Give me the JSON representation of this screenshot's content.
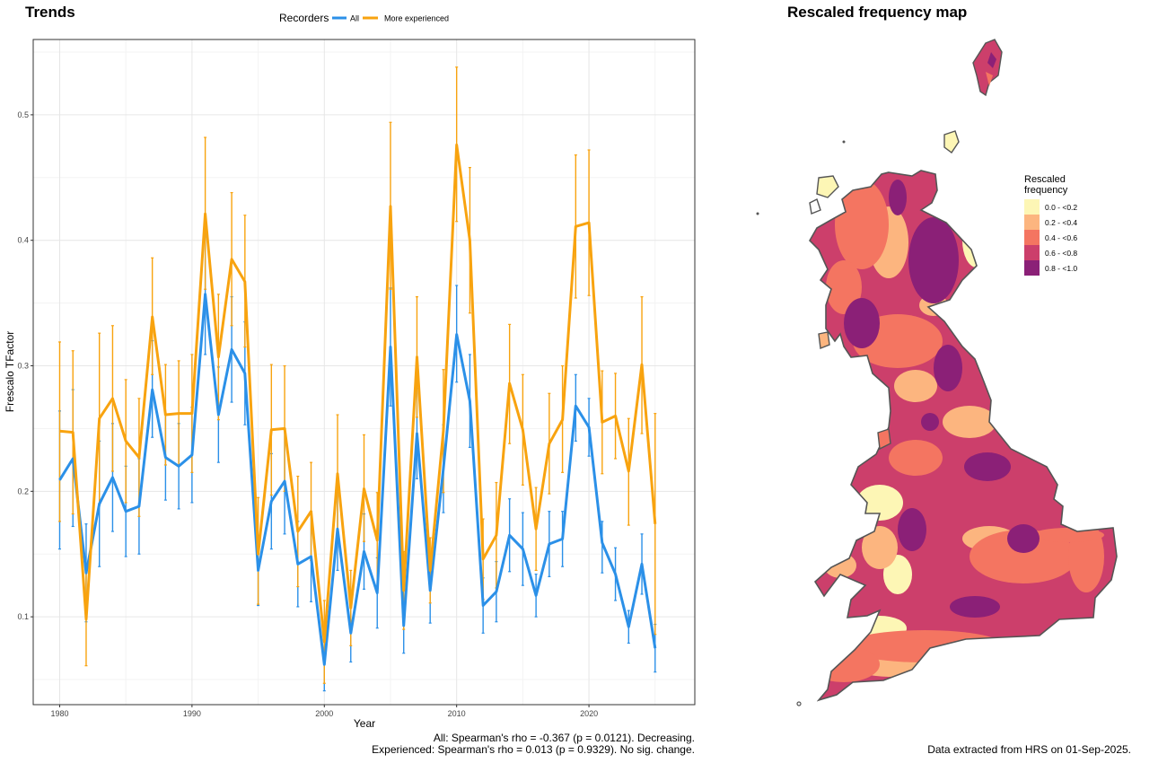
{
  "trends_panel": {
    "title": "Trends",
    "stats": [
      "All: Spearman's rho = -0.367 (p = 0.0121). Decreasing.",
      "Experienced: Spearman's rho = 0.013 (p = 0.9329). No sig. change."
    ]
  },
  "map_panel": {
    "title": "Rescaled frequency map",
    "legend_title": [
      "Rescaled",
      "frequency"
    ],
    "legend_entries": [
      {
        "label": "0.0 - <0.2",
        "color": "#fdf6b5"
      },
      {
        "label": "0.2 - <0.4",
        "color": "#fcb57f"
      },
      {
        "label": "0.4 - <0.6",
        "color": "#f47561"
      },
      {
        "label": "0.6 - <0.8",
        "color": "#cc3f6b"
      },
      {
        "label": "0.8 - <1.0",
        "color": "#8b2077"
      }
    ],
    "footer": "Data extracted from HRS on 01-Sep-2025."
  },
  "chart_data": {
    "type": "line",
    "xlabel": "Year",
    "ylabel": "Frescalo TFactor",
    "xlim": [
      1978,
      2028
    ],
    "ylim": [
      0.03,
      0.56
    ],
    "x_ticks": [
      1980,
      1990,
      2000,
      2010,
      2020
    ],
    "y_ticks": [
      0.1,
      0.2,
      0.3,
      0.4,
      0.5
    ],
    "grid": true,
    "legend_title": "Recorders",
    "legend_position": "top",
    "x": [
      1980,
      1981,
      1982,
      1983,
      1984,
      1985,
      1986,
      1987,
      1988,
      1989,
      1990,
      1991,
      1992,
      1993,
      1994,
      1995,
      1996,
      1997,
      1998,
      1999,
      2000,
      2001,
      2002,
      2003,
      2004,
      2005,
      2006,
      2007,
      2008,
      2009,
      2010,
      2011,
      2012,
      2013,
      2014,
      2015,
      2016,
      2017,
      2018,
      2019,
      2020,
      2021,
      2022,
      2023,
      2024,
      2025
    ],
    "series": [
      {
        "name": "All",
        "color": "#2b90e8",
        "values": [
          0.209,
          0.226,
          0.135,
          0.19,
          0.211,
          0.184,
          0.188,
          0.281,
          0.227,
          0.22,
          0.229,
          0.357,
          0.261,
          0.313,
          0.294,
          0.137,
          0.192,
          0.208,
          0.142,
          0.148,
          0.062,
          0.17,
          0.087,
          0.152,
          0.119,
          0.315,
          0.093,
          0.246,
          0.121,
          0.218,
          0.325,
          0.272,
          0.109,
          0.12,
          0.165,
          0.154,
          0.117,
          0.158,
          0.162,
          0.268,
          0.251,
          0.159,
          0.134,
          0.092,
          0.142,
          0.075
        ],
        "lower": [
          0.154,
          0.172,
          0.096,
          0.14,
          0.168,
          0.148,
          0.15,
          0.243,
          0.193,
          0.186,
          0.191,
          0.309,
          0.223,
          0.271,
          0.253,
          0.109,
          0.154,
          0.166,
          0.108,
          0.112,
          0.041,
          0.137,
          0.064,
          0.122,
          0.091,
          0.268,
          0.071,
          0.21,
          0.095,
          0.183,
          0.287,
          0.235,
          0.087,
          0.096,
          0.136,
          0.125,
          0.1,
          0.132,
          0.14,
          0.24,
          0.228,
          0.135,
          0.113,
          0.079,
          0.118,
          0.056
        ],
        "upper": [
          0.264,
          0.281,
          0.174,
          0.24,
          0.254,
          0.22,
          0.226,
          0.32,
          0.261,
          0.254,
          0.267,
          0.405,
          0.299,
          0.355,
          0.335,
          0.165,
          0.23,
          0.25,
          0.176,
          0.184,
          0.083,
          0.203,
          0.11,
          0.182,
          0.147,
          0.362,
          0.115,
          0.282,
          0.147,
          0.253,
          0.364,
          0.309,
          0.131,
          0.144,
          0.194,
          0.183,
          0.134,
          0.184,
          0.184,
          0.293,
          0.274,
          0.176,
          0.155,
          0.105,
          0.166,
          0.094
        ]
      },
      {
        "name": "More experienced",
        "color": "#f8a30f",
        "values": [
          0.248,
          0.247,
          0.098,
          0.258,
          0.274,
          0.24,
          0.227,
          0.339,
          0.261,
          0.262,
          0.262,
          0.421,
          0.307,
          0.385,
          0.367,
          0.15,
          0.249,
          0.25,
          0.168,
          0.184,
          0.08,
          0.214,
          0.107,
          0.202,
          0.161,
          0.427,
          0.121,
          0.307,
          0.137,
          0.248,
          0.476,
          0.4,
          0.146,
          0.165,
          0.286,
          0.249,
          0.17,
          0.238,
          0.257,
          0.411,
          0.414,
          0.255,
          0.26,
          0.216,
          0.301,
          0.174
        ],
        "lower": [
          0.176,
          0.182,
          0.061,
          0.19,
          0.216,
          0.191,
          0.18,
          0.293,
          0.221,
          0.22,
          0.215,
          0.361,
          0.257,
          0.332,
          0.315,
          0.11,
          0.197,
          0.2,
          0.124,
          0.145,
          0.047,
          0.167,
          0.077,
          0.16,
          0.123,
          0.361,
          0.09,
          0.259,
          0.111,
          0.199,
          0.415,
          0.342,
          0.114,
          0.123,
          0.238,
          0.205,
          0.137,
          0.198,
          0.215,
          0.354,
          0.356,
          0.214,
          0.226,
          0.173,
          0.246,
          0.086
        ],
        "upper": [
          0.319,
          0.312,
          0.135,
          0.326,
          0.332,
          0.289,
          0.274,
          0.386,
          0.301,
          0.304,
          0.309,
          0.482,
          0.357,
          0.438,
          0.42,
          0.195,
          0.301,
          0.3,
          0.212,
          0.223,
          0.113,
          0.261,
          0.137,
          0.245,
          0.199,
          0.494,
          0.152,
          0.355,
          0.163,
          0.297,
          0.538,
          0.458,
          0.178,
          0.207,
          0.333,
          0.293,
          0.203,
          0.278,
          0.3,
          0.468,
          0.472,
          0.296,
          0.294,
          0.258,
          0.355,
          0.262
        ]
      }
    ]
  }
}
